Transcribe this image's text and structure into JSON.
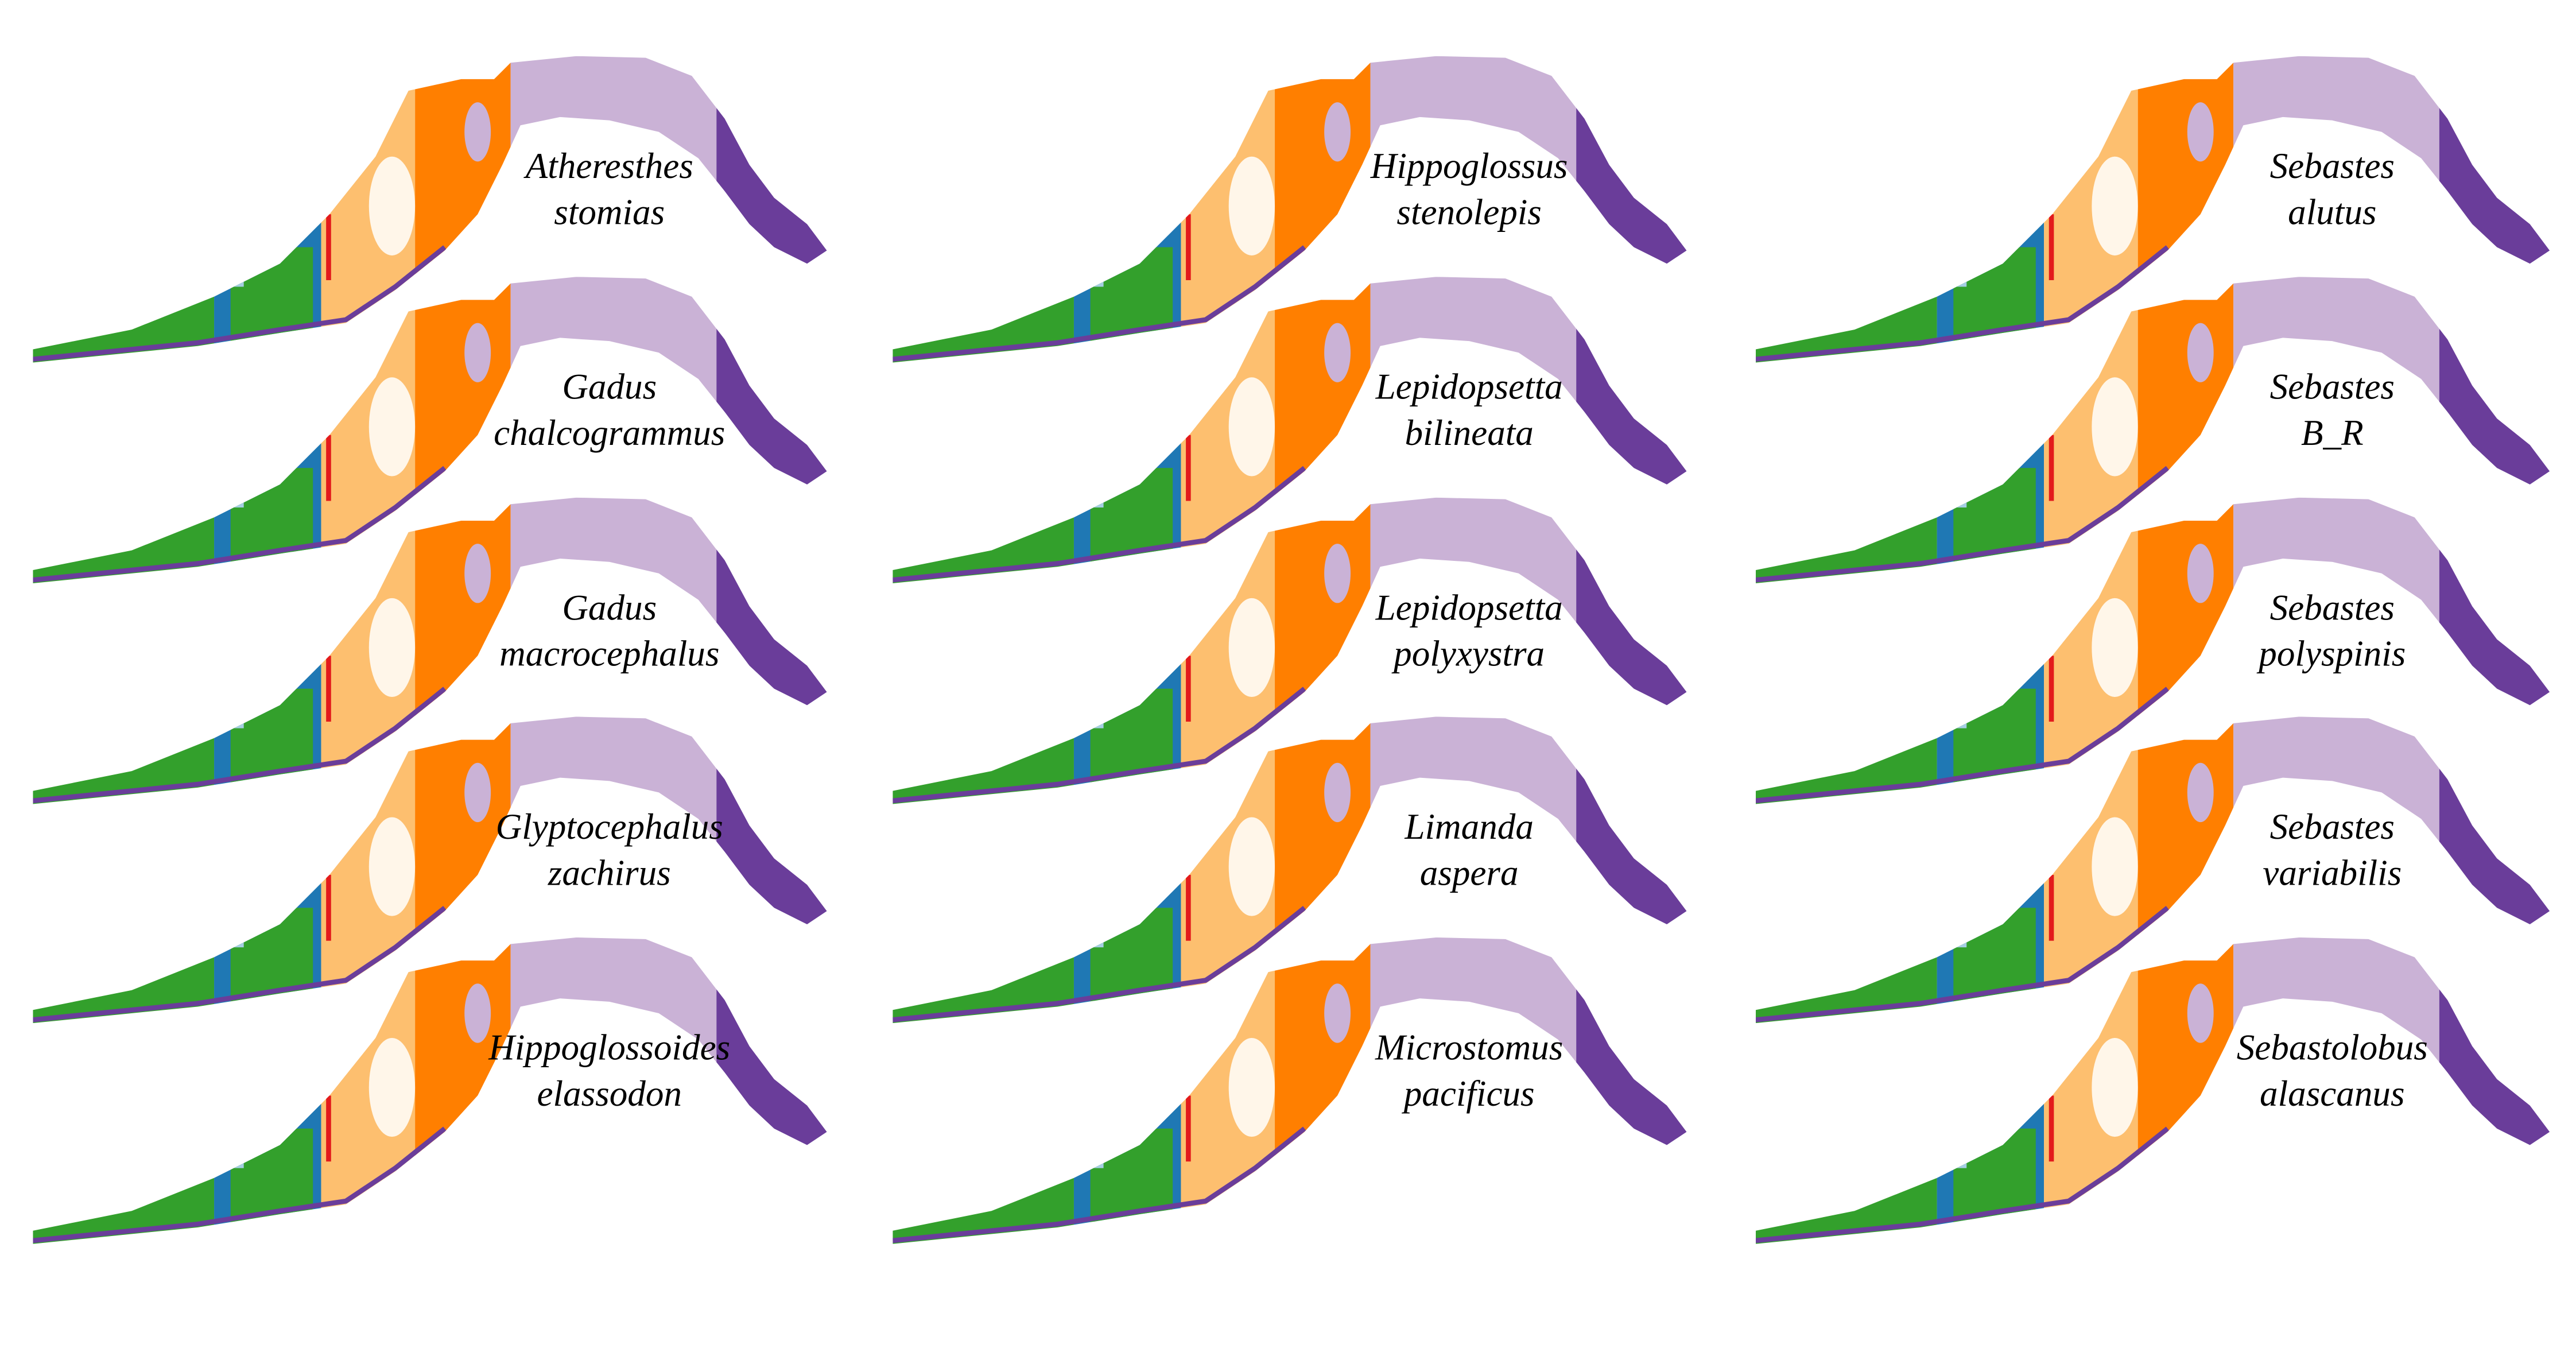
{
  "panels": [
    {
      "genus": "Atheresthes",
      "species": "stomias"
    },
    {
      "genus": "Gadus",
      "species": "chalcogrammus"
    },
    {
      "genus": "Gadus",
      "species": "macrocephalus"
    },
    {
      "genus": "Glyptocephalus",
      "species": "zachirus"
    },
    {
      "genus": "Hippoglossoides",
      "species": "elassodon"
    },
    {
      "genus": "Hippoglossus",
      "species": "stenolepis"
    },
    {
      "genus": "Lepidopsetta",
      "species": "bilineata"
    },
    {
      "genus": "Lepidopsetta",
      "species": "polyxystra"
    },
    {
      "genus": "Limanda",
      "species": "aspera"
    },
    {
      "genus": "Microstomus",
      "species": "pacificus"
    },
    {
      "genus": "Sebastes",
      "species": "alutus"
    },
    {
      "genus": "Sebastes",
      "species": "B_R"
    },
    {
      "genus": "Sebastes",
      "species": "polyspinis"
    },
    {
      "genus": "Sebastes",
      "species": "variabilis"
    },
    {
      "genus": "Sebastolobus",
      "species": "alascanus"
    }
  ]
}
